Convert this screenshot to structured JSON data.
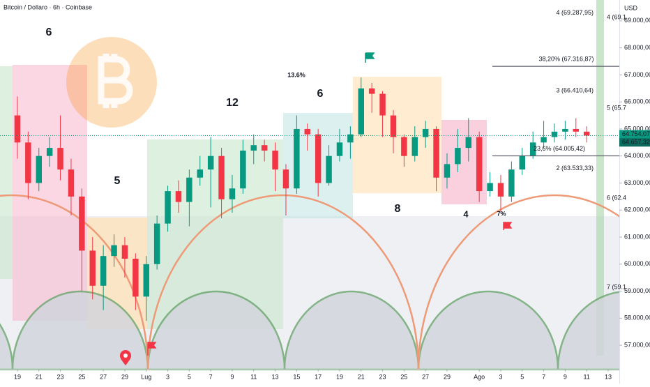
{
  "chart_data": {
    "type": "candlestick",
    "title": "Bitcoin / Dollaro · 6h · Coinbase",
    "currency": "USD",
    "xlim": [
      -1.62,
      56.04
    ],
    "xticks": [
      {
        "value": 0,
        "label": "19"
      },
      {
        "value": 2,
        "label": "21"
      },
      {
        "value": 4,
        "label": "23"
      },
      {
        "value": 6,
        "label": "25"
      },
      {
        "value": 8,
        "label": "27"
      },
      {
        "value": 10,
        "label": "29"
      },
      {
        "value": 12,
        "label": "Lug"
      },
      {
        "value": 14,
        "label": "3"
      },
      {
        "value": 16,
        "label": "5"
      },
      {
        "value": 18,
        "label": "7"
      },
      {
        "value": 20,
        "label": "9"
      },
      {
        "value": 22,
        "label": "11"
      },
      {
        "value": 24,
        "label": "13"
      },
      {
        "value": 26,
        "label": "15"
      },
      {
        "value": 28,
        "label": "17"
      },
      {
        "value": 30,
        "label": "19"
      },
      {
        "value": 32,
        "label": "21"
      },
      {
        "value": 34,
        "label": "23"
      },
      {
        "value": 36,
        "label": "25"
      },
      {
        "value": 38,
        "label": "27"
      },
      {
        "value": 40,
        "label": "29"
      },
      {
        "value": 43,
        "label": "Ago"
      },
      {
        "value": 45,
        "label": "3"
      },
      {
        "value": 47,
        "label": "5"
      },
      {
        "value": 49,
        "label": "7"
      },
      {
        "value": 51,
        "label": "9"
      },
      {
        "value": 53,
        "label": "11"
      },
      {
        "value": 55,
        "label": "13"
      }
    ],
    "ylim": [
      56100,
      69770
    ],
    "yticks": [
      {
        "value": 57000,
        "label": "57.000,00"
      },
      {
        "value": 58000,
        "label": "58.000,00"
      },
      {
        "value": 59000,
        "label": "59.000,00"
      },
      {
        "value": 60000,
        "label": "60.000,00"
      },
      {
        "value": 61000,
        "label": "61.000,00"
      },
      {
        "value": 62000,
        "label": "62.000,00"
      },
      {
        "value": 63000,
        "label": "63.000,00"
      },
      {
        "value": 64000,
        "label": "64.000,00"
      },
      {
        "value": 65000,
        "label": "65.000,00"
      },
      {
        "value": 66000,
        "label": "66.000,00"
      },
      {
        "value": 67000,
        "label": "67.000,00"
      },
      {
        "value": 68000,
        "label": "68.000,00"
      },
      {
        "value": 69000,
        "label": "69.000,00"
      }
    ],
    "up_color": "#089981",
    "down_color": "#f23645",
    "x": [
      0,
      1,
      2,
      3,
      4,
      5,
      6,
      7,
      8,
      9,
      10,
      11,
      12,
      13,
      14,
      15,
      16,
      17,
      18,
      19,
      20,
      21,
      22,
      23,
      24,
      25,
      26,
      27,
      28,
      29,
      30,
      31,
      32,
      33,
      34,
      35,
      36,
      37,
      38,
      39,
      40,
      41,
      42,
      43,
      44,
      45,
      46,
      47,
      48,
      49,
      50,
      51,
      52,
      53
    ],
    "open": [
      65500,
      64500,
      63000,
      64000,
      64300,
      63500,
      62500,
      60500,
      59200,
      60300,
      60700,
      60200,
      58800,
      60000,
      61500,
      62700,
      62300,
      63200,
      63500,
      64000,
      62400,
      62800,
      64200,
      64400,
      64200,
      63500,
      62800,
      65000,
      64800,
      63000,
      64000,
      64500,
      64800,
      66500,
      66300,
      65500,
      64700,
      64000,
      64700,
      65000,
      63200,
      63700,
      64300,
      64700,
      62700,
      63000,
      62500,
      63500,
      64000,
      64500,
      64700,
      64900,
      65000,
      64900
    ],
    "high": [
      66200,
      64900,
      64300,
      64700,
      65500,
      63900,
      62800,
      61000,
      60700,
      61100,
      61000,
      60400,
      60300,
      61800,
      62900,
      63100,
      63500,
      64000,
      64700,
      64300,
      63300,
      64600,
      64800,
      64600,
      64500,
      63700,
      65500,
      65200,
      65000,
      64400,
      65000,
      65100,
      66900,
      66700,
      66400,
      65700,
      64800,
      65100,
      65300,
      65100,
      64100,
      65000,
      65400,
      64900,
      63400,
      63300,
      63800,
      64300,
      64900,
      65300,
      65200,
      65300,
      65400,
      65100
    ],
    "low": [
      63900,
      62400,
      62700,
      63600,
      63100,
      61800,
      59000,
      58700,
      58300,
      59900,
      59500,
      58300,
      57900,
      59800,
      61200,
      61900,
      61400,
      62900,
      62100,
      61700,
      61900,
      62600,
      63700,
      63800,
      62700,
      61800,
      62600,
      64200,
      62500,
      62900,
      63800,
      63900,
      64700,
      65600,
      64700,
      64100,
      63600,
      63800,
      64300,
      62700,
      62800,
      63400,
      63800,
      62300,
      62500,
      61900,
      62300,
      63300,
      63900,
      64300,
      64500,
      64600,
      64700,
      64500
    ],
    "close": [
      64500,
      63000,
      64000,
      64300,
      63500,
      62500,
      60500,
      59200,
      60300,
      60700,
      60200,
      58800,
      60000,
      61500,
      62700,
      62300,
      63200,
      63500,
      64000,
      62400,
      62800,
      64200,
      64400,
      64200,
      63500,
      62800,
      65000,
      64800,
      63000,
      64000,
      64500,
      64800,
      66500,
      66300,
      65500,
      64700,
      64000,
      64700,
      65000,
      63200,
      63700,
      64300,
      64700,
      62700,
      63000,
      62500,
      63500,
      64000,
      64500,
      64700,
      64900,
      65000,
      64900,
      64754.07
    ],
    "price_tags": [
      {
        "value": 64754.07,
        "label": "64.754,07"
      },
      {
        "value": 64657.32,
        "label": "64.657,32"
      }
    ],
    "fib_levels": [
      {
        "value": 67316.87,
        "label": "38,20% (67.316,87)"
      },
      {
        "value": 64005.42,
        "label": "23,6% (64.005,42)"
      }
    ],
    "level_labels": [
      {
        "value": 69287.95,
        "label": "4 (69.287,95)"
      },
      {
        "value": 66410.64,
        "label": "3 (66.410,64)"
      },
      {
        "value": 63533.33,
        "label": "2 (63.533,33)"
      }
    ],
    "cycle_labels": [
      "4 (69.1",
      "5 (65.7",
      "6 (62.4",
      "7 (59.1"
    ],
    "annotations": [
      "6",
      "5",
      "12",
      "6",
      "8",
      "4",
      "13.6%",
      "7%"
    ]
  }
}
